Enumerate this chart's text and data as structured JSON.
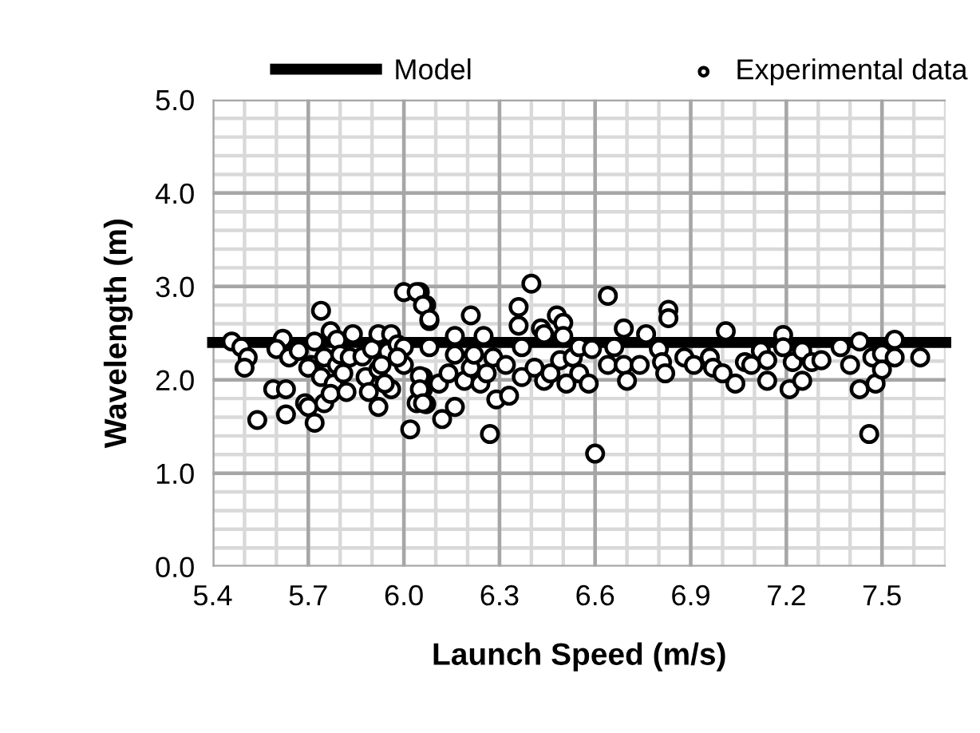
{
  "chart_data": {
    "type": "scatter",
    "xlabel": "Launch Speed (m/s)",
    "ylabel": "Wavelength (m)",
    "xlim": [
      5.4,
      7.7
    ],
    "xticks": [
      {
        "value": 5.4,
        "label": "5.4"
      },
      {
        "value": 5.7,
        "label": "5.7"
      },
      {
        "value": 6.0,
        "label": "6.0"
      },
      {
        "value": 6.3,
        "label": "6.3"
      },
      {
        "value": 6.6,
        "label": "6.6"
      },
      {
        "value": 6.9,
        "label": "6.9"
      },
      {
        "value": 7.2,
        "label": "7.2"
      },
      {
        "value": 7.5,
        "label": "7.5"
      }
    ],
    "ylim": [
      0,
      5
    ],
    "yticks": [
      {
        "value": 0,
        "label": "0.0"
      },
      {
        "value": 1,
        "label": "1.0"
      },
      {
        "value": 2,
        "label": "2.0"
      },
      {
        "value": 3,
        "label": "3.0"
      },
      {
        "value": 4,
        "label": "4.0"
      },
      {
        "value": 5,
        "label": "5.0"
      }
    ],
    "grid": true,
    "legend": "top",
    "marker": "circle",
    "series": [
      {
        "name": "Model",
        "type": "line",
        "color": "#000000",
        "marker": "none",
        "x": [
          5.4,
          7.7
        ],
        "values": [
          2.4,
          2.4
        ]
      },
      {
        "name": "Experimental data",
        "type": "scatter",
        "color": "#000000",
        "x": [
          5.46,
          5.49,
          5.51,
          5.5,
          5.54,
          5.59,
          5.63,
          5.63,
          5.62,
          5.6,
          5.64,
          5.67,
          5.69,
          5.7,
          5.72,
          5.74,
          5.72,
          5.71,
          5.7,
          5.75,
          5.75,
          5.77,
          5.79,
          5.79,
          5.74,
          5.78,
          5.77,
          5.81,
          5.82,
          5.8,
          5.84,
          5.83,
          5.87,
          5.88,
          5.89,
          5.9,
          5.92,
          5.92,
          5.92,
          5.95,
          5.96,
          5.96,
          5.98,
          6.0,
          6.0,
          6.0,
          6.05,
          6.07,
          6.08,
          6.06,
          6.06,
          6.02,
          6.04,
          6.08,
          6.07,
          5.98,
          5.94,
          5.93,
          6.04,
          6.06,
          6.08,
          6.05,
          6.05,
          6.06,
          6.11,
          6.12,
          6.16,
          6.14,
          6.16,
          6.16,
          6.19,
          6.21,
          6.21,
          6.22,
          6.24,
          6.25,
          6.26,
          6.27,
          6.28,
          6.29,
          6.33,
          6.32,
          6.36,
          6.36,
          6.37,
          6.37,
          6.4,
          6.41,
          6.43,
          6.44,
          6.44,
          6.46,
          6.48,
          6.5,
          6.49,
          6.5,
          6.51,
          6.53,
          6.55,
          6.55,
          6.58,
          6.59,
          6.6,
          6.64,
          6.64,
          6.66,
          6.69,
          6.69,
          6.7,
          6.74,
          6.76,
          6.8,
          6.81,
          6.82,
          6.83,
          6.83,
          6.88,
          6.91,
          6.96,
          6.97,
          7.0,
          7.01,
          7.04,
          7.07,
          7.09,
          7.12,
          7.14,
          7.14,
          7.19,
          7.19,
          7.21,
          7.22,
          7.25,
          7.25,
          7.28,
          7.31,
          7.37,
          7.4,
          7.43,
          7.43,
          7.46,
          7.47,
          7.48,
          7.5,
          7.5,
          7.54,
          7.54,
          7.62
        ],
        "values": [
          2.41,
          2.35,
          2.24,
          2.13,
          1.57,
          1.9,
          1.9,
          1.63,
          2.44,
          2.33,
          2.24,
          2.31,
          1.75,
          1.71,
          1.54,
          2.74,
          2.41,
          2.16,
          2.13,
          2.24,
          1.75,
          2.52,
          2.16,
          2.43,
          2.03,
          1.96,
          1.85,
          2.07,
          1.87,
          2.27,
          2.49,
          2.24,
          2.25,
          2.03,
          1.87,
          2.33,
          1.71,
          2.11,
          2.49,
          2.3,
          2.49,
          1.9,
          2.38,
          2.35,
          2.16,
          2.94,
          2.94,
          2.8,
          2.63,
          2.03,
          1.9,
          1.47,
          1.75,
          2.35,
          1.74,
          2.24,
          1.96,
          2.16,
          2.94,
          2.8,
          2.65,
          2.04,
          1.9,
          1.75,
          1.96,
          1.58,
          1.71,
          2.07,
          2.27,
          2.47,
          1.99,
          2.69,
          2.13,
          2.27,
          1.96,
          2.47,
          2.07,
          1.42,
          2.24,
          1.79,
          1.83,
          2.16,
          2.78,
          2.58,
          2.35,
          2.03,
          3.03,
          2.13,
          2.55,
          2.49,
          1.99,
          2.07,
          2.69,
          2.61,
          2.21,
          2.47,
          1.96,
          2.24,
          2.07,
          2.35,
          1.96,
          2.33,
          1.21,
          2.9,
          2.16,
          2.35,
          2.55,
          2.16,
          1.99,
          2.16,
          2.49,
          2.33,
          2.19,
          2.07,
          2.75,
          2.66,
          2.24,
          2.16,
          2.24,
          2.13,
          2.07,
          2.52,
          1.96,
          2.19,
          2.16,
          2.31,
          2.21,
          1.99,
          2.48,
          2.35,
          1.9,
          2.19,
          2.31,
          1.99,
          2.19,
          2.21,
          2.35,
          2.16,
          2.41,
          1.9,
          1.42,
          2.24,
          1.96,
          2.28,
          2.11,
          2.43,
          2.24,
          2.24
        ]
      }
    ]
  }
}
